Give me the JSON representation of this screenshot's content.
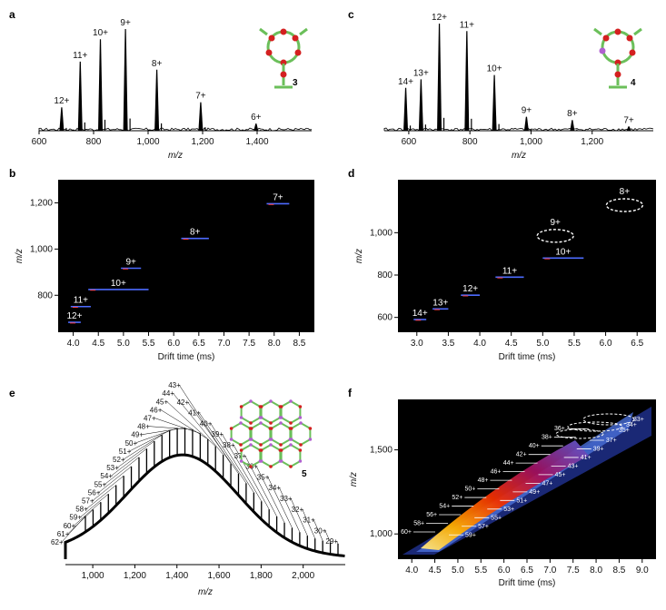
{
  "panels": {
    "a": "a",
    "b": "b",
    "c": "c",
    "d": "d",
    "e": "e",
    "f": "f"
  },
  "compounds": {
    "a": "3",
    "c": "4",
    "e": "5"
  },
  "chart_data": [
    {
      "panel": "a",
      "type": "line",
      "xlabel": "m/z",
      "ylabel": "",
      "xlim": [
        600,
        1600
      ],
      "xticks": [
        600,
        800,
        1000,
        1200,
        1400
      ],
      "xtick_labels": [
        "600",
        "800",
        "1,000",
        "1,200",
        "1,400"
      ],
      "peaks": [
        {
          "label": "12+",
          "x": 683,
          "y": 0.23
        },
        {
          "label": "11+",
          "x": 751,
          "y": 0.68
        },
        {
          "label": "10+",
          "x": 825,
          "y": 0.9
        },
        {
          "label": "9+",
          "x": 917,
          "y": 1.0
        },
        {
          "label": "8+",
          "x": 1032,
          "y": 0.6
        },
        {
          "label": "7+",
          "x": 1193,
          "y": 0.28
        },
        {
          "label": "6+",
          "x": 1396,
          "y": 0.07
        }
      ]
    },
    {
      "panel": "b",
      "type": "scatter",
      "xlabel": "Drift time (ms)",
      "ylabel": "m/z",
      "xlim": [
        3.7,
        8.8
      ],
      "ylim": [
        640,
        1300
      ],
      "xticks": [
        4.0,
        4.5,
        5.0,
        5.5,
        6.0,
        6.5,
        7.0,
        7.5,
        8.0,
        8.5
      ],
      "xtick_labels": [
        "4.0",
        "4.5",
        "5.0",
        "5.5",
        "6.0",
        "6.5",
        "7.0",
        "7.5",
        "8.0",
        "8.5"
      ],
      "yticks": [
        800,
        1000,
        1200
      ],
      "ytick_labels": [
        "800",
        "1,000",
        "1,200"
      ],
      "points": [
        {
          "label": "12+",
          "x0": 3.9,
          "x1": 4.15,
          "y": 683
        },
        {
          "label": "11+",
          "x0": 3.95,
          "x1": 4.35,
          "y": 751
        },
        {
          "label": "10+",
          "x0": 4.3,
          "x1": 5.5,
          "y": 825
        },
        {
          "label": "9+",
          "x0": 4.95,
          "x1": 5.35,
          "y": 917
        },
        {
          "label": "8+",
          "x0": 6.15,
          "x1": 6.7,
          "y": 1046
        },
        {
          "label": "7+",
          "x0": 7.85,
          "x1": 8.3,
          "y": 1196
        }
      ]
    },
    {
      "panel": "c",
      "type": "line",
      "xlabel": "m/z",
      "ylabel": "",
      "xlim": [
        520,
        1400
      ],
      "xticks": [
        600,
        800,
        1000,
        1200
      ],
      "xtick_labels": [
        "600",
        "800",
        "1,000",
        "1,200"
      ],
      "peaks": [
        {
          "label": "14+",
          "x": 590,
          "y": 0.4
        },
        {
          "label": "13+",
          "x": 640,
          "y": 0.48
        },
        {
          "label": "12+",
          "x": 700,
          "y": 1.0
        },
        {
          "label": "11+",
          "x": 790,
          "y": 0.93
        },
        {
          "label": "10+",
          "x": 880,
          "y": 0.52
        },
        {
          "label": "9+",
          "x": 985,
          "y": 0.13
        },
        {
          "label": "8+",
          "x": 1135,
          "y": 0.1
        },
        {
          "label": "7+",
          "x": 1320,
          "y": 0.04
        }
      ]
    },
    {
      "panel": "d",
      "type": "scatter",
      "xlabel": "Drift time (ms)",
      "ylabel": "m/z",
      "xlim": [
        2.7,
        6.8
      ],
      "ylim": [
        530,
        1250
      ],
      "xticks": [
        3.0,
        3.5,
        4.0,
        4.5,
        5.0,
        5.5,
        6.0,
        6.5
      ],
      "xtick_labels": [
        "3.0",
        "3.5",
        "4.0",
        "4.5",
        "5.0",
        "5.5",
        "6.0",
        "6.5"
      ],
      "yticks": [
        600,
        800,
        1000
      ],
      "ytick_labels": [
        "600",
        "800",
        "1,000"
      ],
      "points": [
        {
          "label": "14+",
          "x0": 2.95,
          "x1": 3.15,
          "y": 590
        },
        {
          "label": "13+",
          "x0": 3.25,
          "x1": 3.5,
          "y": 640
        },
        {
          "label": "12+",
          "x0": 3.7,
          "x1": 4.0,
          "y": 705
        },
        {
          "label": "11+",
          "x0": 4.25,
          "x1": 4.7,
          "y": 790
        },
        {
          "label": "10+",
          "x0": 5.0,
          "x1": 5.65,
          "y": 880
        }
      ],
      "ellipses": [
        {
          "label": "9+",
          "x": 5.2,
          "y": 985
        },
        {
          "label": "8+",
          "x": 6.3,
          "y": 1130
        }
      ]
    },
    {
      "panel": "e",
      "type": "line",
      "xlabel": "m/z",
      "ylabel": "",
      "xlim": [
        870,
        2200
      ],
      "xticks": [
        1000,
        1200,
        1400,
        1600,
        1800,
        2000
      ],
      "xtick_labels": [
        "1,000",
        "1,200",
        "1,400",
        "1,600",
        "1,800",
        "2,000"
      ],
      "charge_states": [
        "62+",
        "61+",
        "60+",
        "59+",
        "58+",
        "57+",
        "56+",
        "55+",
        "54+",
        "53+",
        "52+",
        "51+",
        "50+",
        "49+",
        "48+",
        "47+",
        "46+",
        "45+",
        "44+",
        "43+",
        "42+",
        "41+",
        "40+",
        "39+",
        "38+",
        "37+",
        "36+",
        "35+",
        "34+",
        "33+",
        "32+",
        "31+",
        "30+",
        "29+"
      ]
    },
    {
      "panel": "f",
      "type": "heatmap",
      "xlabel": "Drift time (ms)",
      "ylabel": "m/z",
      "xlim": [
        3.7,
        9.3
      ],
      "ylim": [
        850,
        1800
      ],
      "xticks": [
        4.0,
        4.5,
        5.0,
        5.5,
        6.0,
        6.5,
        7.0,
        7.5,
        8.0,
        8.5,
        9.0
      ],
      "xtick_labels": [
        "4.0",
        "4.5",
        "5.0",
        "5.5",
        "6.0",
        "6.5",
        "7.0",
        "7.5",
        "8.0",
        "8.5",
        "9.0"
      ],
      "yticks": [
        1000,
        1500
      ],
      "ytick_labels": [
        "1,000",
        "1,500"
      ],
      "annotations": [
        "33+",
        "34+",
        "35+",
        "36+",
        "37+",
        "38+",
        "39+",
        "40+",
        "41+",
        "42+",
        "43+",
        "44+",
        "45+",
        "46+",
        "47+",
        "48+",
        "49+",
        "50+",
        "51+",
        "52+",
        "53+",
        "54+",
        "55+",
        "56+",
        "57+",
        "58+",
        "59+",
        "60+"
      ]
    }
  ]
}
